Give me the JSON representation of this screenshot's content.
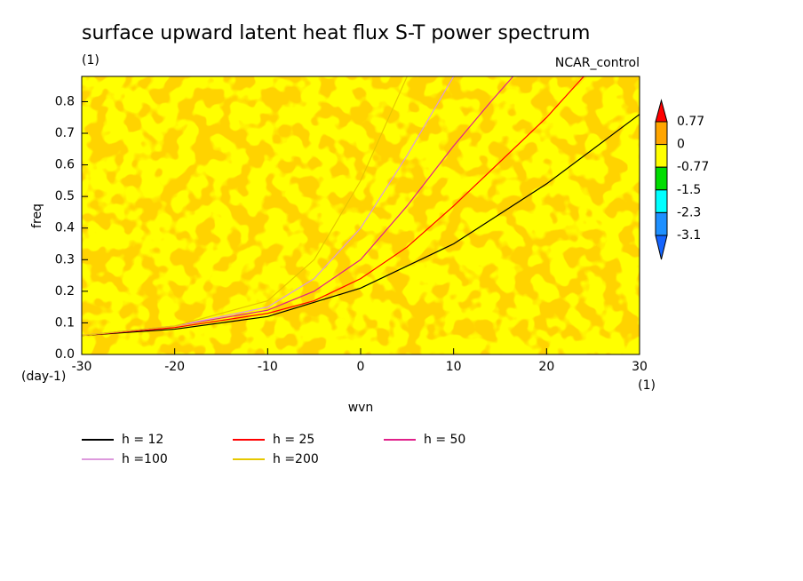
{
  "chart_data": {
    "type": "line",
    "title": "surface upward latent heat flux S-T power spectrum",
    "subtitle": "(1)",
    "annotation": "NCAR_control",
    "xlabel": "wvn",
    "xunit": "(1)",
    "ylabel": "freq",
    "yunit": "(day-1)",
    "xlim": [
      -30,
      30
    ],
    "xticks": [
      -30,
      -20,
      -10,
      0,
      10,
      20,
      30
    ],
    "ylim": [
      0,
      0.88
    ],
    "yticks": [
      {
        "value": 0,
        "label": "0.0"
      },
      0.1,
      0.2,
      0.3,
      0.4,
      0.5,
      0.6,
      0.7,
      0.8
    ],
    "colorbar": {
      "levels": [
        0.77,
        0,
        -0.77,
        -1.5,
        -2.3,
        -3.1
      ],
      "colors": [
        "#ff0000",
        "#ffa500",
        "#ffff00",
        "#00dd00",
        "#00ffff",
        "#1e90ff",
        "#1464ff"
      ]
    },
    "series": [
      {
        "name": "h = 12",
        "color": "#000000",
        "x": [
          -30,
          -20,
          -10,
          0,
          10,
          20,
          30
        ],
        "values": [
          0.06,
          0.08,
          0.12,
          0.21,
          0.35,
          0.54,
          0.76
        ]
      },
      {
        "name": "h = 25",
        "color": "#ff0000",
        "x": [
          -30,
          -20,
          -10,
          -5,
          0,
          5,
          10,
          15,
          20,
          24
        ],
        "values": [
          0.06,
          0.085,
          0.13,
          0.17,
          0.24,
          0.34,
          0.47,
          0.61,
          0.75,
          0.88
        ]
      },
      {
        "name": "h = 50",
        "color": "#e0208a",
        "x": [
          -30,
          -20,
          -10,
          -5,
          0,
          5,
          10,
          14,
          16.4
        ],
        "values": [
          0.06,
          0.09,
          0.14,
          0.2,
          0.3,
          0.47,
          0.66,
          0.8,
          0.88
        ]
      },
      {
        "name": "h =100",
        "color": "#dd99dd",
        "x": [
          -30,
          -20,
          -10,
          -5,
          0,
          5,
          10
        ],
        "values": [
          0.06,
          0.09,
          0.15,
          0.24,
          0.4,
          0.63,
          0.88
        ]
      },
      {
        "name": "h =200",
        "color": "#e6c800",
        "x": [
          -30,
          -20,
          -10,
          -5,
          0,
          5
        ],
        "values": [
          0.06,
          0.09,
          0.17,
          0.3,
          0.55,
          0.88
        ]
      }
    ]
  }
}
